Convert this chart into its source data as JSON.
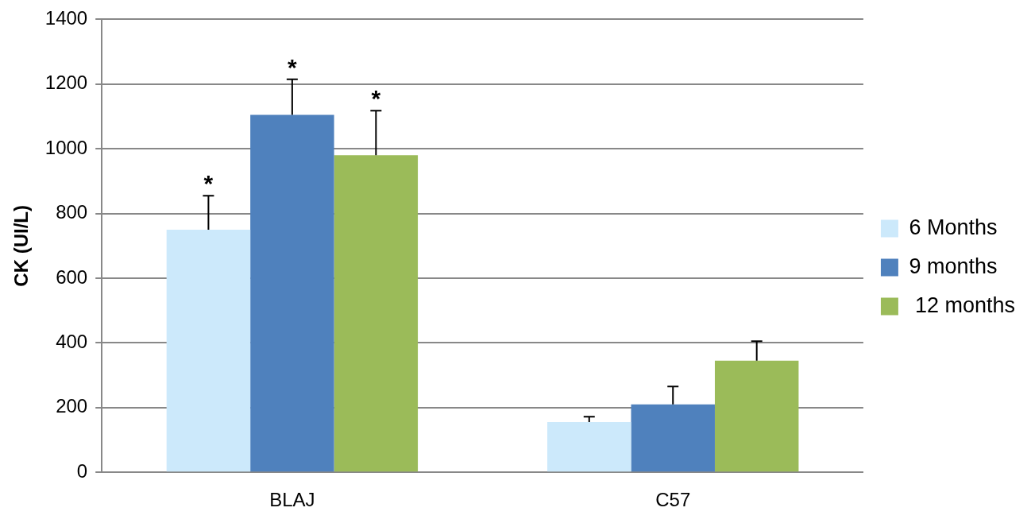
{
  "chart_data": {
    "type": "bar",
    "ylabel": "CK (UI/L)",
    "categories": [
      "BLAJ",
      "C57"
    ],
    "series": [
      {
        "name": "6 Months",
        "color": "#cce9fb",
        "values": [
          750,
          155
        ],
        "errors": [
          [
            750,
            855
          ],
          [
            155,
            172
          ]
        ],
        "value_labels": [
          "*",
          null
        ]
      },
      {
        "name": "9 months",
        "color": "#4f81bd",
        "values": [
          1105,
          210
        ],
        "errors": [
          [
            1105,
            1215
          ],
          [
            210,
            265
          ]
        ],
        "value_labels": [
          "*",
          null
        ]
      },
      {
        "name": " 12 months",
        "color": "#9bbb59",
        "values": [
          980,
          345
        ],
        "errors": [
          [
            980,
            1118
          ],
          [
            345,
            405
          ]
        ],
        "value_labels": [
          "*",
          null
        ]
      }
    ],
    "ylim": [
      0,
      1400
    ],
    "yticks": [
      0,
      200,
      400,
      600,
      800,
      1000,
      1200,
      1400
    ],
    "grid": "y",
    "legend": "right"
  }
}
